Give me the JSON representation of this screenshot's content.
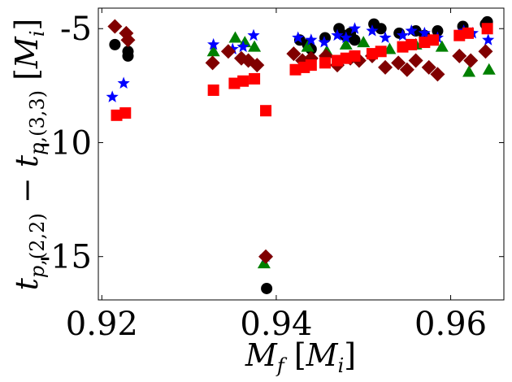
{
  "chart_data": {
    "type": "scatter",
    "title": "",
    "xlabel": "M_f [M_i]",
    "ylabel": "t_{p,(2,2)} - t_{p,(3,3)} [M_i]",
    "xlim": [
      0.9196,
      0.9661
    ],
    "ylim": [
      -16.9,
      -4.1
    ],
    "xticks": [
      0.92,
      0.94,
      0.96
    ],
    "xtick_labels": [
      "0.92",
      "0.94",
      "0.96"
    ],
    "yticks": [
      -5,
      -10,
      -15
    ],
    "ytick_labels": [
      "-5",
      "-10",
      "-15"
    ],
    "grid": false,
    "series": [
      {
        "name": "circle",
        "marker": "circle",
        "color": "#000000",
        "x": [
          0.9215,
          0.923,
          0.923,
          0.9389,
          0.9427,
          0.9436,
          0.944,
          0.9456,
          0.9472,
          0.9479,
          0.9485,
          0.949,
          0.9512,
          0.952,
          0.9541,
          0.956,
          0.957,
          0.9585,
          0.9614,
          0.964,
          0.9642
        ],
        "y": [
          -5.7,
          -6.2,
          -6.0,
          -16.4,
          -5.5,
          -5.7,
          -5.9,
          -5.4,
          -5.0,
          -5.3,
          -5.2,
          -5.5,
          -4.8,
          -5.0,
          -5.2,
          -5.1,
          -5.3,
          -5.1,
          -4.9,
          -4.8,
          -4.7
        ]
      },
      {
        "name": "triangle",
        "marker": "triangle",
        "color": "#008000",
        "x": [
          0.9328,
          0.9353,
          0.9364,
          0.9375,
          0.9386,
          0.9436,
          0.9458,
          0.948,
          0.95,
          0.953,
          0.956,
          0.959,
          0.9621,
          0.9644
        ],
        "y": [
          -6.0,
          -5.4,
          -5.6,
          -5.8,
          -15.3,
          -5.8,
          -6.0,
          -5.7,
          -5.6,
          -5.9,
          -5.7,
          -5.8,
          -6.9,
          -6.8
        ]
      },
      {
        "name": "star",
        "marker": "star",
        "color": "#0000ff",
        "x": [
          0.9212,
          0.9225,
          0.9328,
          0.935,
          0.9362,
          0.9374,
          0.9388,
          0.9425,
          0.944,
          0.9455,
          0.947,
          0.948,
          0.949,
          0.951,
          0.9525,
          0.9545,
          0.9555,
          0.957,
          0.9585,
          0.9615,
          0.9625,
          0.9643
        ],
        "y": [
          -8.0,
          -7.4,
          -5.7,
          -5.9,
          -5.8,
          -5.3,
          -15.0,
          -5.4,
          -5.5,
          -5.6,
          -5.3,
          -5.4,
          -5.0,
          -5.1,
          -5.4,
          -5.3,
          -5.1,
          -5.2,
          -5.4,
          -5.1,
          -5.2,
          -5.5
        ]
      },
      {
        "name": "diamond",
        "marker": "diamond",
        "color": "#800000",
        "x": [
          0.9215,
          0.9228,
          0.923,
          0.9327,
          0.9345,
          0.936,
          0.9368,
          0.9378,
          0.9388,
          0.942,
          0.943,
          0.944,
          0.9457,
          0.947,
          0.9485,
          0.9495,
          0.951,
          0.9525,
          0.954,
          0.955,
          0.956,
          0.9575,
          0.9585,
          0.961,
          0.9623,
          0.964
        ],
        "y": [
          -4.9,
          -5.2,
          -5.5,
          -6.5,
          -6.0,
          -6.3,
          -6.4,
          -6.6,
          -15.0,
          -6.1,
          -6.4,
          -6.3,
          -6.2,
          -6.6,
          -6.3,
          -6.4,
          -6.2,
          -6.7,
          -6.5,
          -6.8,
          -6.4,
          -6.7,
          -7.0,
          -6.2,
          -6.4,
          -6.0
        ]
      },
      {
        "name": "square",
        "marker": "square",
        "color": "#ff0000",
        "x": [
          0.9217,
          0.9227,
          0.9328,
          0.9352,
          0.9362,
          0.9375,
          0.9388,
          0.9422,
          0.9432,
          0.944,
          0.9456,
          0.947,
          0.948,
          0.949,
          0.951,
          0.952,
          0.9545,
          0.9555,
          0.957,
          0.958,
          0.961,
          0.962,
          0.9642
        ],
        "y": [
          -8.8,
          -8.7,
          -7.7,
          -7.4,
          -7.3,
          -7.2,
          -8.6,
          -6.8,
          -6.7,
          -6.6,
          -6.5,
          -6.4,
          -6.3,
          -6.2,
          -6.1,
          -6.0,
          -5.8,
          -5.7,
          -5.6,
          -5.5,
          -5.3,
          -5.2,
          -5.0
        ]
      }
    ]
  }
}
